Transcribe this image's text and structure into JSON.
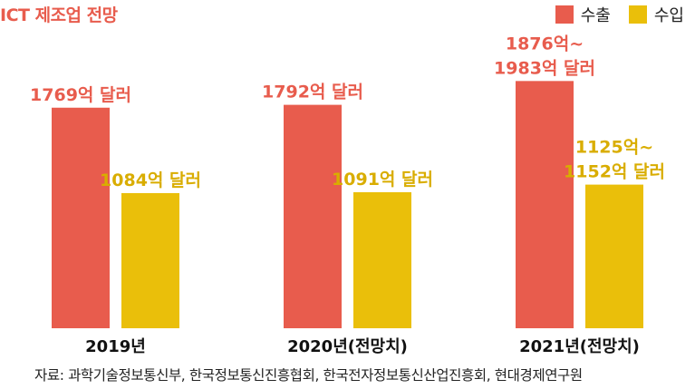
{
  "chart_data": {
    "type": "bar",
    "title": "ICT 제조업 전망",
    "categories": [
      "2019년",
      "2020년(전망치)",
      "2021년(전망치)"
    ],
    "series": [
      {
        "name": "수출",
        "color": "#e85c4d",
        "values": [
          1769,
          1792,
          1983
        ],
        "range_low": [
          null,
          null,
          1876
        ],
        "labels": [
          [
            "1769억 달러"
          ],
          [
            "1792억 달러"
          ],
          [
            "1876억~",
            "1983억 달러"
          ]
        ]
      },
      {
        "name": "수입",
        "color": "#eabf0a",
        "values": [
          1084,
          1091,
          1152
        ],
        "range_low": [
          null,
          null,
          1125
        ],
        "labels": [
          [
            "1084억 달러"
          ],
          [
            "1091억 달러"
          ],
          [
            "1125억~",
            "1152억 달러"
          ]
        ]
      }
    ],
    "ylabel": "",
    "unit": "억 달러",
    "ylim": [
      0,
      2000
    ],
    "grid": false,
    "legend_position": "top-right"
  },
  "source": "자료: 과학기술정보통신부, 한국정보통신진흥협회, 한국전자정보통신산업진흥회, 현대경제연구원"
}
